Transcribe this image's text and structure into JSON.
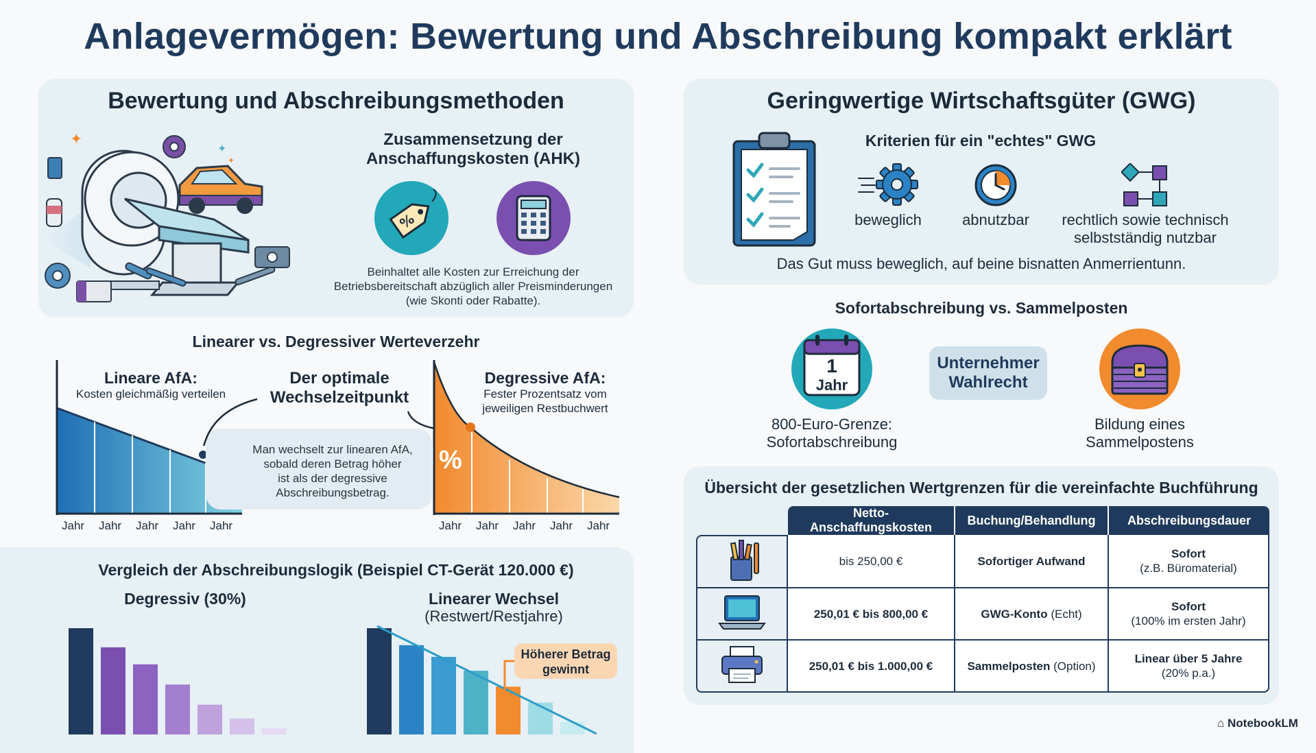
{
  "title": "Anlagevermögen: Bewertung und Abschreibung kompakt erklärt",
  "left_top": {
    "heading": "Bewertung und Abschreibungsmethoden",
    "ahk_heading_1": "Zusammensetzung der",
    "ahk_heading_2": "Anschaffungskosten (AHK)",
    "ahk_desc_1": "Beinhaltet alle Kosten zur Erreichung der",
    "ahk_desc_2": "Betriebsbereitschaft abzüglich aller Preisminderungen",
    "ahk_desc_3": "(wie Skonti oder Rabatte).",
    "tag_icon": "price-tag-icon",
    "calc_icon": "calculator-icon"
  },
  "linear_vs": {
    "heading": "Linearer vs. Degressiver Werteverzehr",
    "linear_title": "Lineare AfA:",
    "linear_sub": "Kosten gleichmäßig verteilen",
    "optimal_1": "Der optimale",
    "optimal_2": "Wechselzeitpunkt",
    "switch_1": "Man wechselt zur linearen AfA,",
    "switch_2": "sobald deren Betrag höher",
    "switch_3": "ist als der degressive",
    "switch_4": "Abschreibungsbetrag.",
    "degr_title": "Degressive AfA:",
    "degr_sub_1": "Fester Prozentsatz vom",
    "degr_sub_2": "jeweiligen Restbuchwert",
    "percent_sign": "%",
    "year_label": "Jahr",
    "colors": {
      "linear": "#2f7fc1",
      "degressive": "#f28a2e"
    }
  },
  "comparison": {
    "heading": "Vergleich der Abschreibungslogik (Beispiel CT-Gerät 120.000 €)",
    "left_label": "Degressiv (30%)",
    "right_label_1": "Linearer Wechsel",
    "right_label_2": "(Restwert/Restjahre)",
    "callout_1": "Höherer Betrag",
    "callout_2": "gewinnt",
    "left_bars": [
      1.0,
      0.82,
      0.66,
      0.47,
      0.28,
      0.15,
      0.06
    ],
    "right_bars": [
      1.0,
      0.84,
      0.73,
      0.6,
      0.45,
      0.3,
      0.12
    ]
  },
  "gwg": {
    "heading": "Geringwertige Wirtschaftsgüter (GWG)",
    "criteria_heading": "Kriterien für ein \"echtes\" GWG",
    "c1": "beweglich",
    "c2": "abnutzbar",
    "c3_1": "rechtlich sowie technisch",
    "c3_2": "selbstständig nutzbar",
    "note": "Das Gut muss beweglich, auf beine bisnatten Anmerrientunn.",
    "icons": [
      "clipboard-icon",
      "gear-icon",
      "clock-icon",
      "connected-blocks-icon"
    ]
  },
  "sofort": {
    "heading": "Sofortabschreibung vs. Sammelposten",
    "calendar_num": "1",
    "calendar_word": "Jahr",
    "left_1": "800-Euro-Grenze:",
    "left_2": "Sofortabschreibung",
    "middle_1": "Unternehmer",
    "middle_2": "Wahlrecht",
    "right_1": "Bildung eines",
    "right_2": "Sammelpostens"
  },
  "overview": {
    "heading": "Übersicht der gesetzlichen Wertgrenzen für die vereinfachte Buchführung",
    "columns": [
      "Netto-Anschaffungskosten",
      "Buchung/Behandlung",
      "Abschreibungsdauer"
    ],
    "rows": [
      {
        "icon": "pencil-cup-icon",
        "cost": "bis 250,00 €",
        "booking": "Sofortiger Aufwand",
        "booking_extra": "",
        "duration": "Sofort",
        "duration_sub": "(z.B. Büromaterial)"
      },
      {
        "icon": "laptop-icon",
        "cost": "250,01 € bis 800,00 €",
        "booking": "GWG-Konto",
        "booking_extra": " (Echt)",
        "duration": "Sofort",
        "duration_sub": "(100% im ersten Jahr)"
      },
      {
        "icon": "printer-icon",
        "cost": "250,01 € bis 1.000,00 €",
        "booking": "Sammelposten",
        "booking_extra": " (Option)",
        "duration": "Linear über 5 Jahre",
        "duration_sub": "(20% p.a.)"
      }
    ]
  },
  "footer": {
    "brand": "NotebookLM"
  }
}
